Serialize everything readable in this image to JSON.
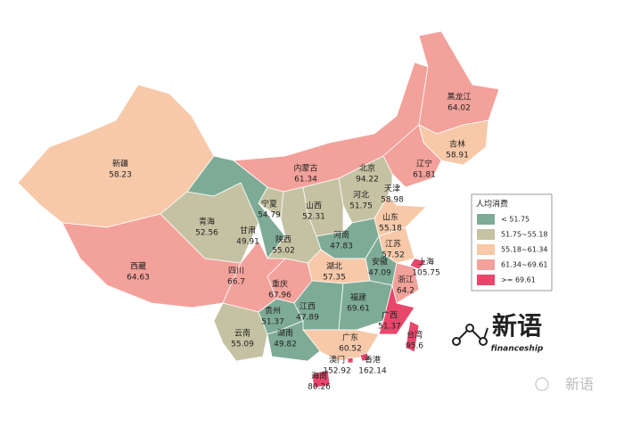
{
  "legend": {
    "title": "人均消费",
    "items": [
      {
        "label": "< 51.75",
        "color": "#7eab96"
      },
      {
        "label": "51.75~55.18",
        "color": "#c4c2a2"
      },
      {
        "label": "55.18~61.34",
        "color": "#f7c9a9"
      },
      {
        "label": "61.34~69.61",
        "color": "#f3a19b"
      },
      {
        "label": ">= 69.61",
        "color": "#e8476b"
      }
    ]
  },
  "regions": [
    {
      "name": "新疆",
      "value": 58.23,
      "color": "#f7c9a9"
    },
    {
      "name": "西藏",
      "value": 64.63,
      "color": "#f3a19b"
    },
    {
      "name": "青海",
      "value": 52.56,
      "color": "#c4c2a2"
    },
    {
      "name": "甘肃",
      "value": 49.91,
      "color": "#7eab96"
    },
    {
      "name": "宁夏",
      "value": 54.79,
      "color": "#c4c2a2"
    },
    {
      "name": "内蒙古",
      "value": 61.34,
      "color": "#f3a19b"
    },
    {
      "name": "黑龙江",
      "value": 64.02,
      "color": "#f3a19b"
    },
    {
      "name": "吉林",
      "value": 58.91,
      "color": "#f7c9a9"
    },
    {
      "name": "辽宁",
      "value": 61.81,
      "color": "#f3a19b"
    },
    {
      "name": "北京",
      "value": 94.22,
      "color": "#e8476b"
    },
    {
      "name": "天津",
      "value": 58.98,
      "color": "#f7c9a9"
    },
    {
      "name": "河北",
      "value": 51.75,
      "color": "#c4c2a2"
    },
    {
      "name": "山西",
      "value": 52.31,
      "color": "#c4c2a2"
    },
    {
      "name": "山东",
      "value": 55.18,
      "color": "#f7c9a9"
    },
    {
      "name": "河南",
      "value": 47.83,
      "color": "#7eab96"
    },
    {
      "name": "陕西",
      "value": 55.02,
      "color": "#c4c2a2"
    },
    {
      "name": "江苏",
      "value": 57.52,
      "color": "#f7c9a9"
    },
    {
      "name": "上海",
      "value": 105.75,
      "color": "#e8476b"
    },
    {
      "name": "安徽",
      "value": 47.09,
      "color": "#7eab96"
    },
    {
      "name": "浙江",
      "value": 64.2,
      "color": "#f3a19b"
    },
    {
      "name": "湖北",
      "value": 57.35,
      "color": "#f7c9a9"
    },
    {
      "name": "重庆",
      "value": 67.96,
      "color": "#f3a19b"
    },
    {
      "name": "四川",
      "value": 66.7,
      "color": "#f3a19b"
    },
    {
      "name": "云南",
      "value": 55.09,
      "color": "#c4c2a2"
    },
    {
      "name": "贵州",
      "value": 51.37,
      "color": "#7eab96"
    },
    {
      "name": "湖南",
      "value": 49.82,
      "color": "#7eab96"
    },
    {
      "name": "江西",
      "value": 47.89,
      "color": "#7eab96"
    },
    {
      "name": "福建",
      "value": 69.61,
      "color": "#e8476b"
    },
    {
      "name": "广西",
      "value": 51.37,
      "color": "#7eab96"
    },
    {
      "name": "广东",
      "value": 60.52,
      "color": "#f7c9a9"
    },
    {
      "name": "香港",
      "value": 162.14,
      "color": "#e8476b"
    },
    {
      "name": "澳门",
      "value": 152.92,
      "color": "#e8476b"
    },
    {
      "name": "海南",
      "value": 80.26,
      "color": "#e8476b"
    },
    {
      "name": "台湾",
      "value": 95.6,
      "color": "#e8476b"
    }
  ],
  "logo": {
    "title": "新语",
    "subtitle": "financeship"
  },
  "watermark": "新语"
}
